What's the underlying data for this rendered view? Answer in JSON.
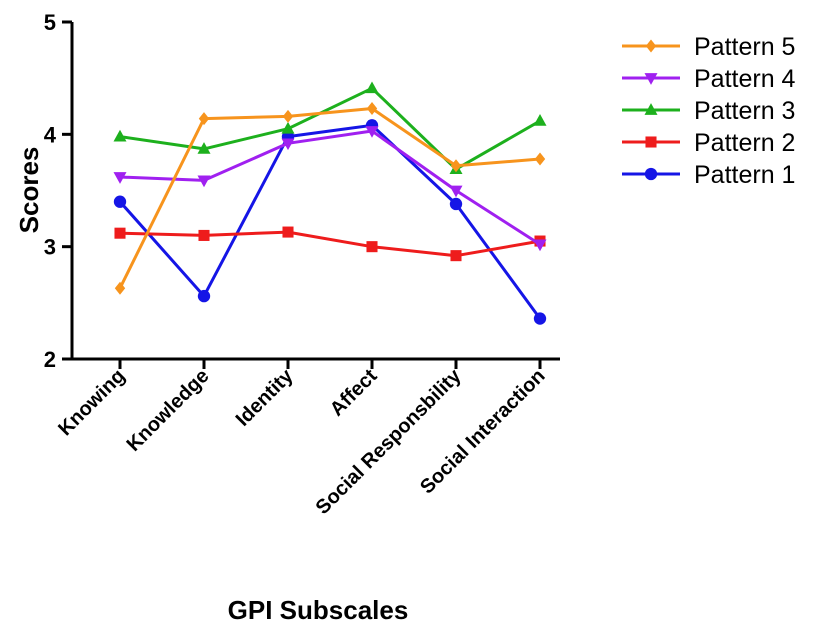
{
  "chart_data": {
    "type": "line",
    "title": "",
    "xlabel": "GPI Subscales",
    "ylabel": "Scores",
    "categories": [
      "Knowing",
      "Knowledge",
      "Identity",
      "Affect",
      "Social Responsbility",
      "Social Interaction"
    ],
    "ylim": [
      2,
      5
    ],
    "yticks": [
      "2",
      "3",
      "4",
      "5"
    ],
    "grid": false,
    "legend_position": "top-right",
    "series": [
      {
        "name": "Pattern 5",
        "color": "#F7941D",
        "marker": "diamond",
        "values": [
          2.63,
          4.14,
          4.16,
          4.23,
          3.72,
          3.78
        ]
      },
      {
        "name": "Pattern 4",
        "color": "#A020F0",
        "marker": "triangle-down",
        "values": [
          3.62,
          3.59,
          3.92,
          4.03,
          3.5,
          3.02
        ]
      },
      {
        "name": "Pattern 3",
        "color": "#1DB01D",
        "marker": "triangle-up",
        "values": [
          3.98,
          3.87,
          4.05,
          4.41,
          3.69,
          4.12
        ]
      },
      {
        "name": "Pattern 2",
        "color": "#EE1C1C",
        "marker": "square",
        "values": [
          3.12,
          3.1,
          3.13,
          3.0,
          2.92,
          3.05
        ]
      },
      {
        "name": "Pattern 1",
        "color": "#1515E6",
        "marker": "circle",
        "values": [
          3.4,
          2.56,
          3.98,
          4.08,
          3.38,
          2.36
        ]
      }
    ]
  }
}
